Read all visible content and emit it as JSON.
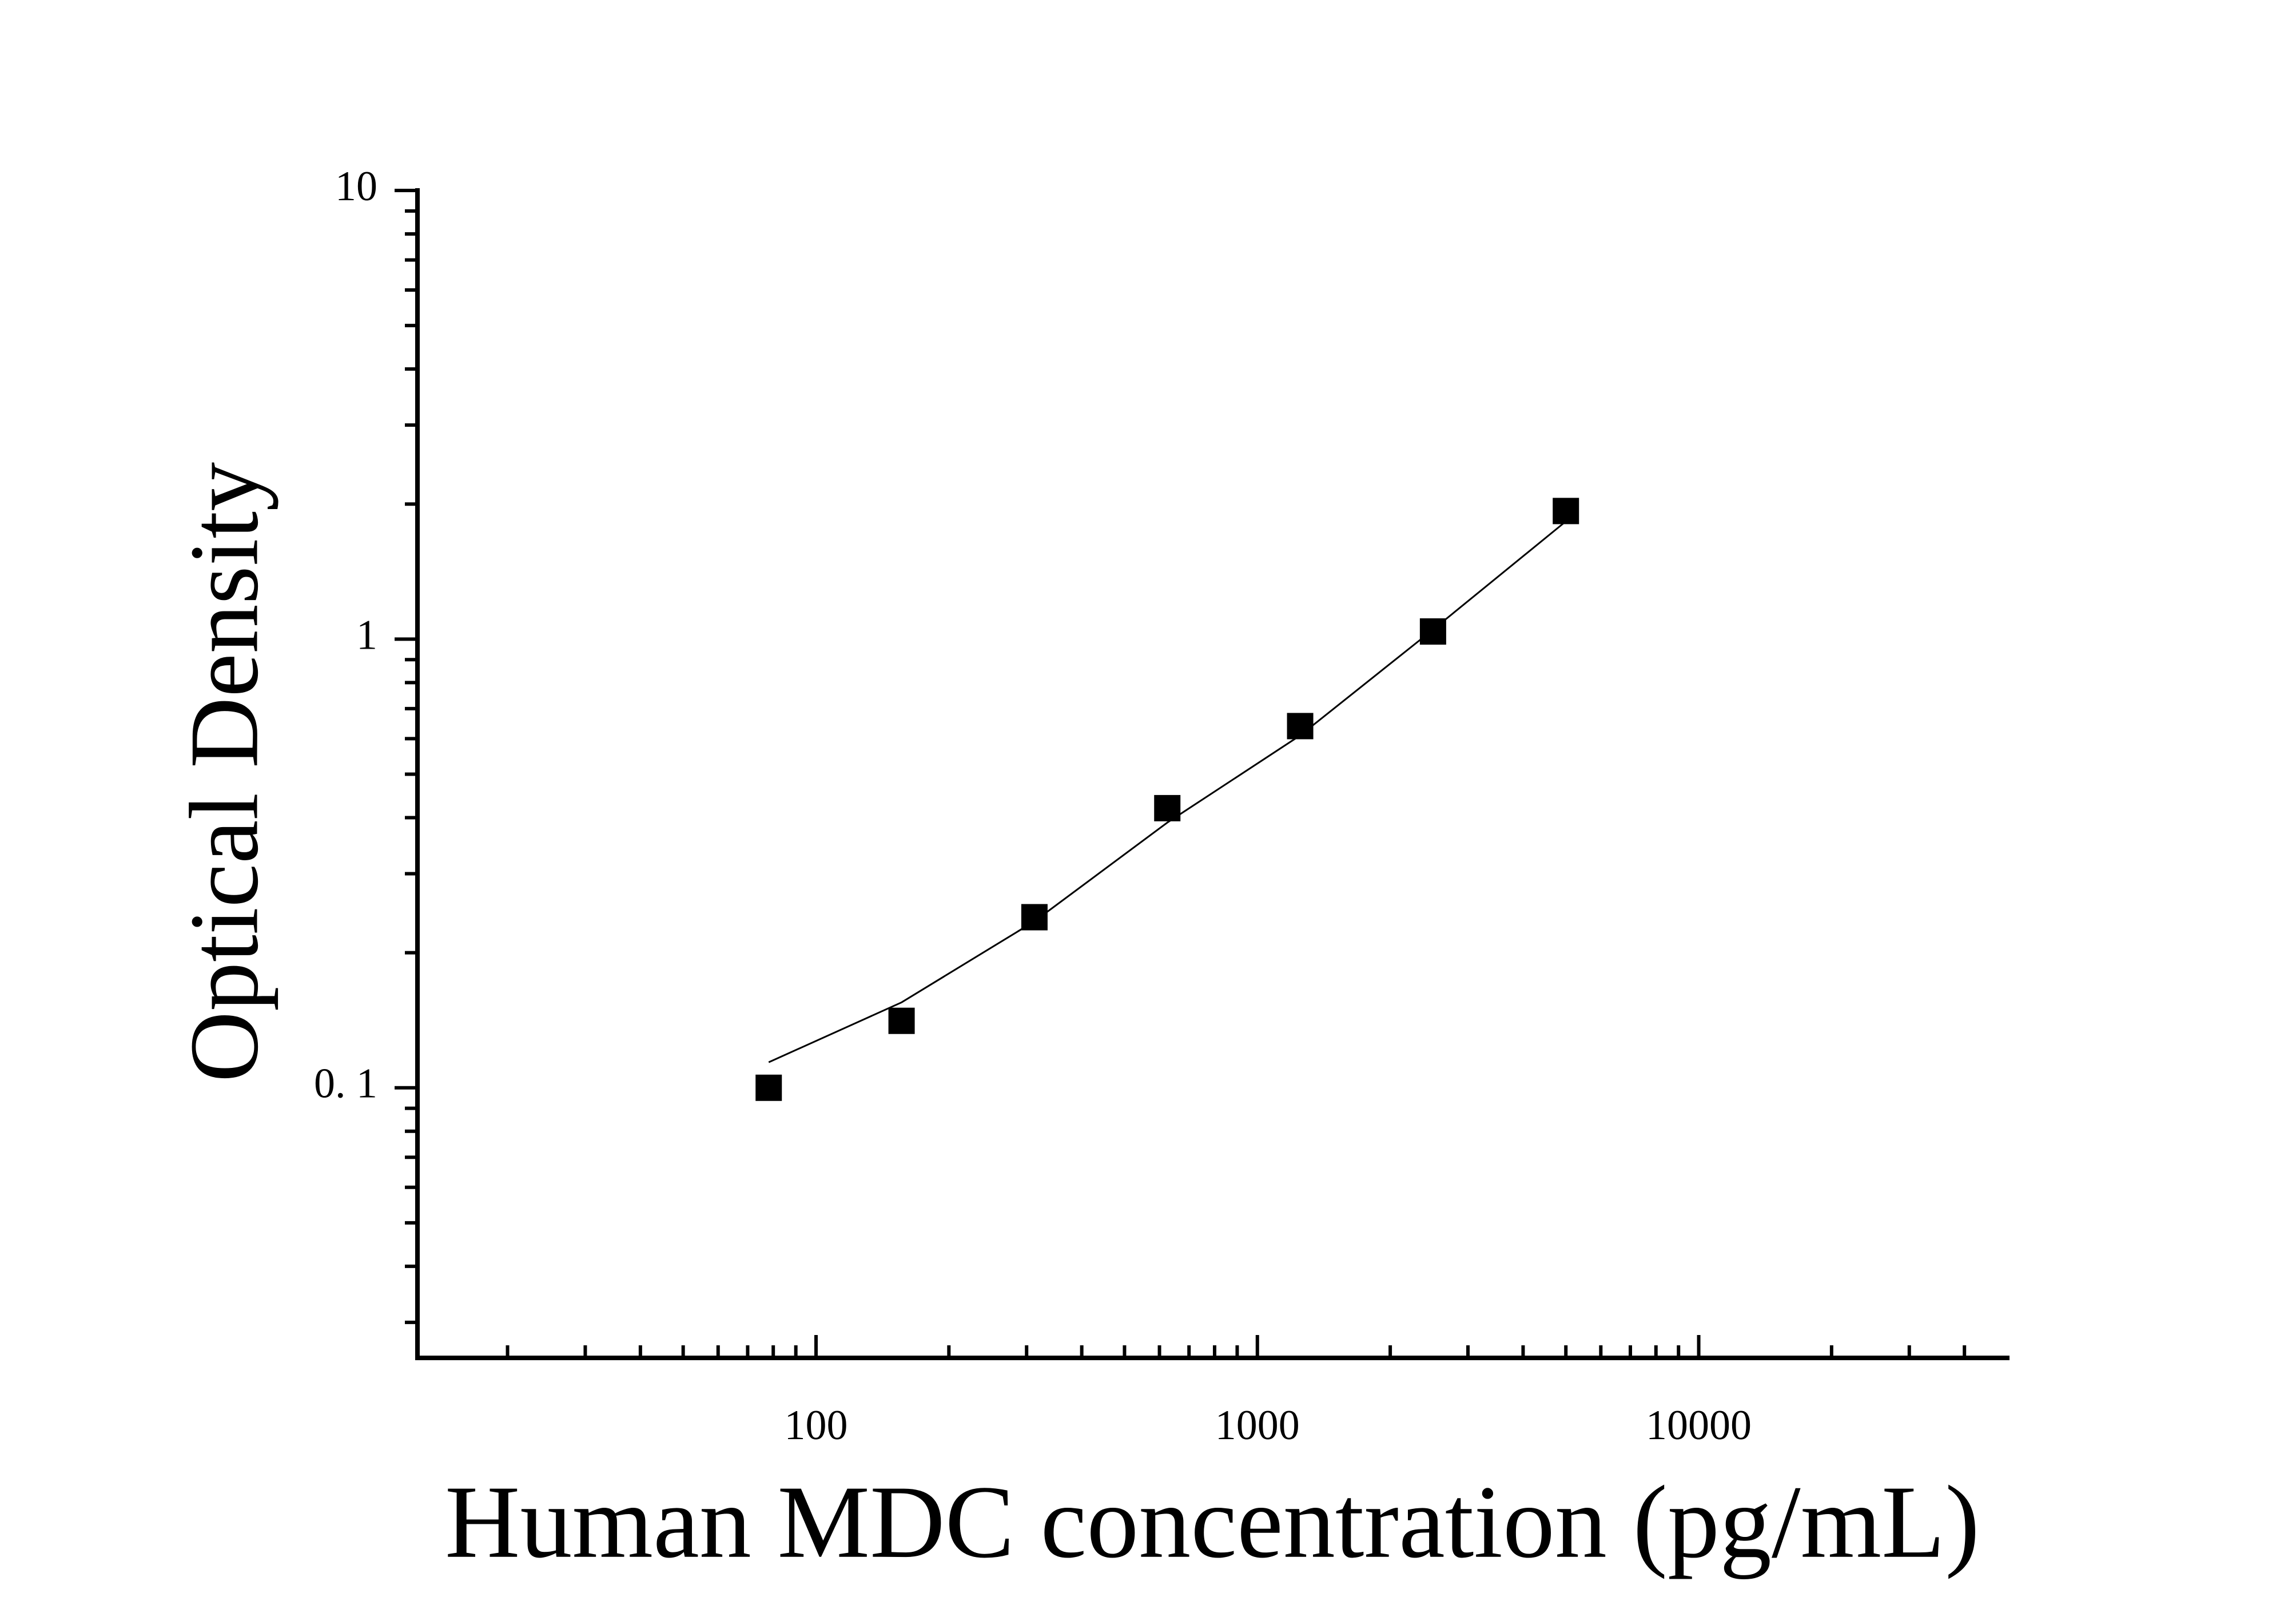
{
  "chart_data": {
    "type": "scatter",
    "x_label": "Human MDC concentration (pg/mL)",
    "y_label": "Optical Density",
    "xscale": "log",
    "yscale": "log",
    "xlim": [
      12.5,
      50000
    ],
    "ylim": [
      0.025,
      10
    ],
    "xticks": [
      100,
      1000,
      10000
    ],
    "yticks": [
      {
        "value": 0.1,
        "label": "0. 1"
      },
      1,
      10
    ],
    "x": [
      78.125,
      156.25,
      312.5,
      625,
      1250,
      2500,
      5000
    ],
    "series": [
      {
        "type": "scatter",
        "color": "#000000",
        "values": [
          0.1,
          0.141,
          0.24,
          0.42,
          0.64,
          1.04,
          1.93
        ]
      },
      {
        "type": "line",
        "color": "#000000",
        "values": [
          0.114,
          0.155,
          0.235,
          0.39,
          0.61,
          1.05,
          1.83
        ]
      }
    ]
  }
}
